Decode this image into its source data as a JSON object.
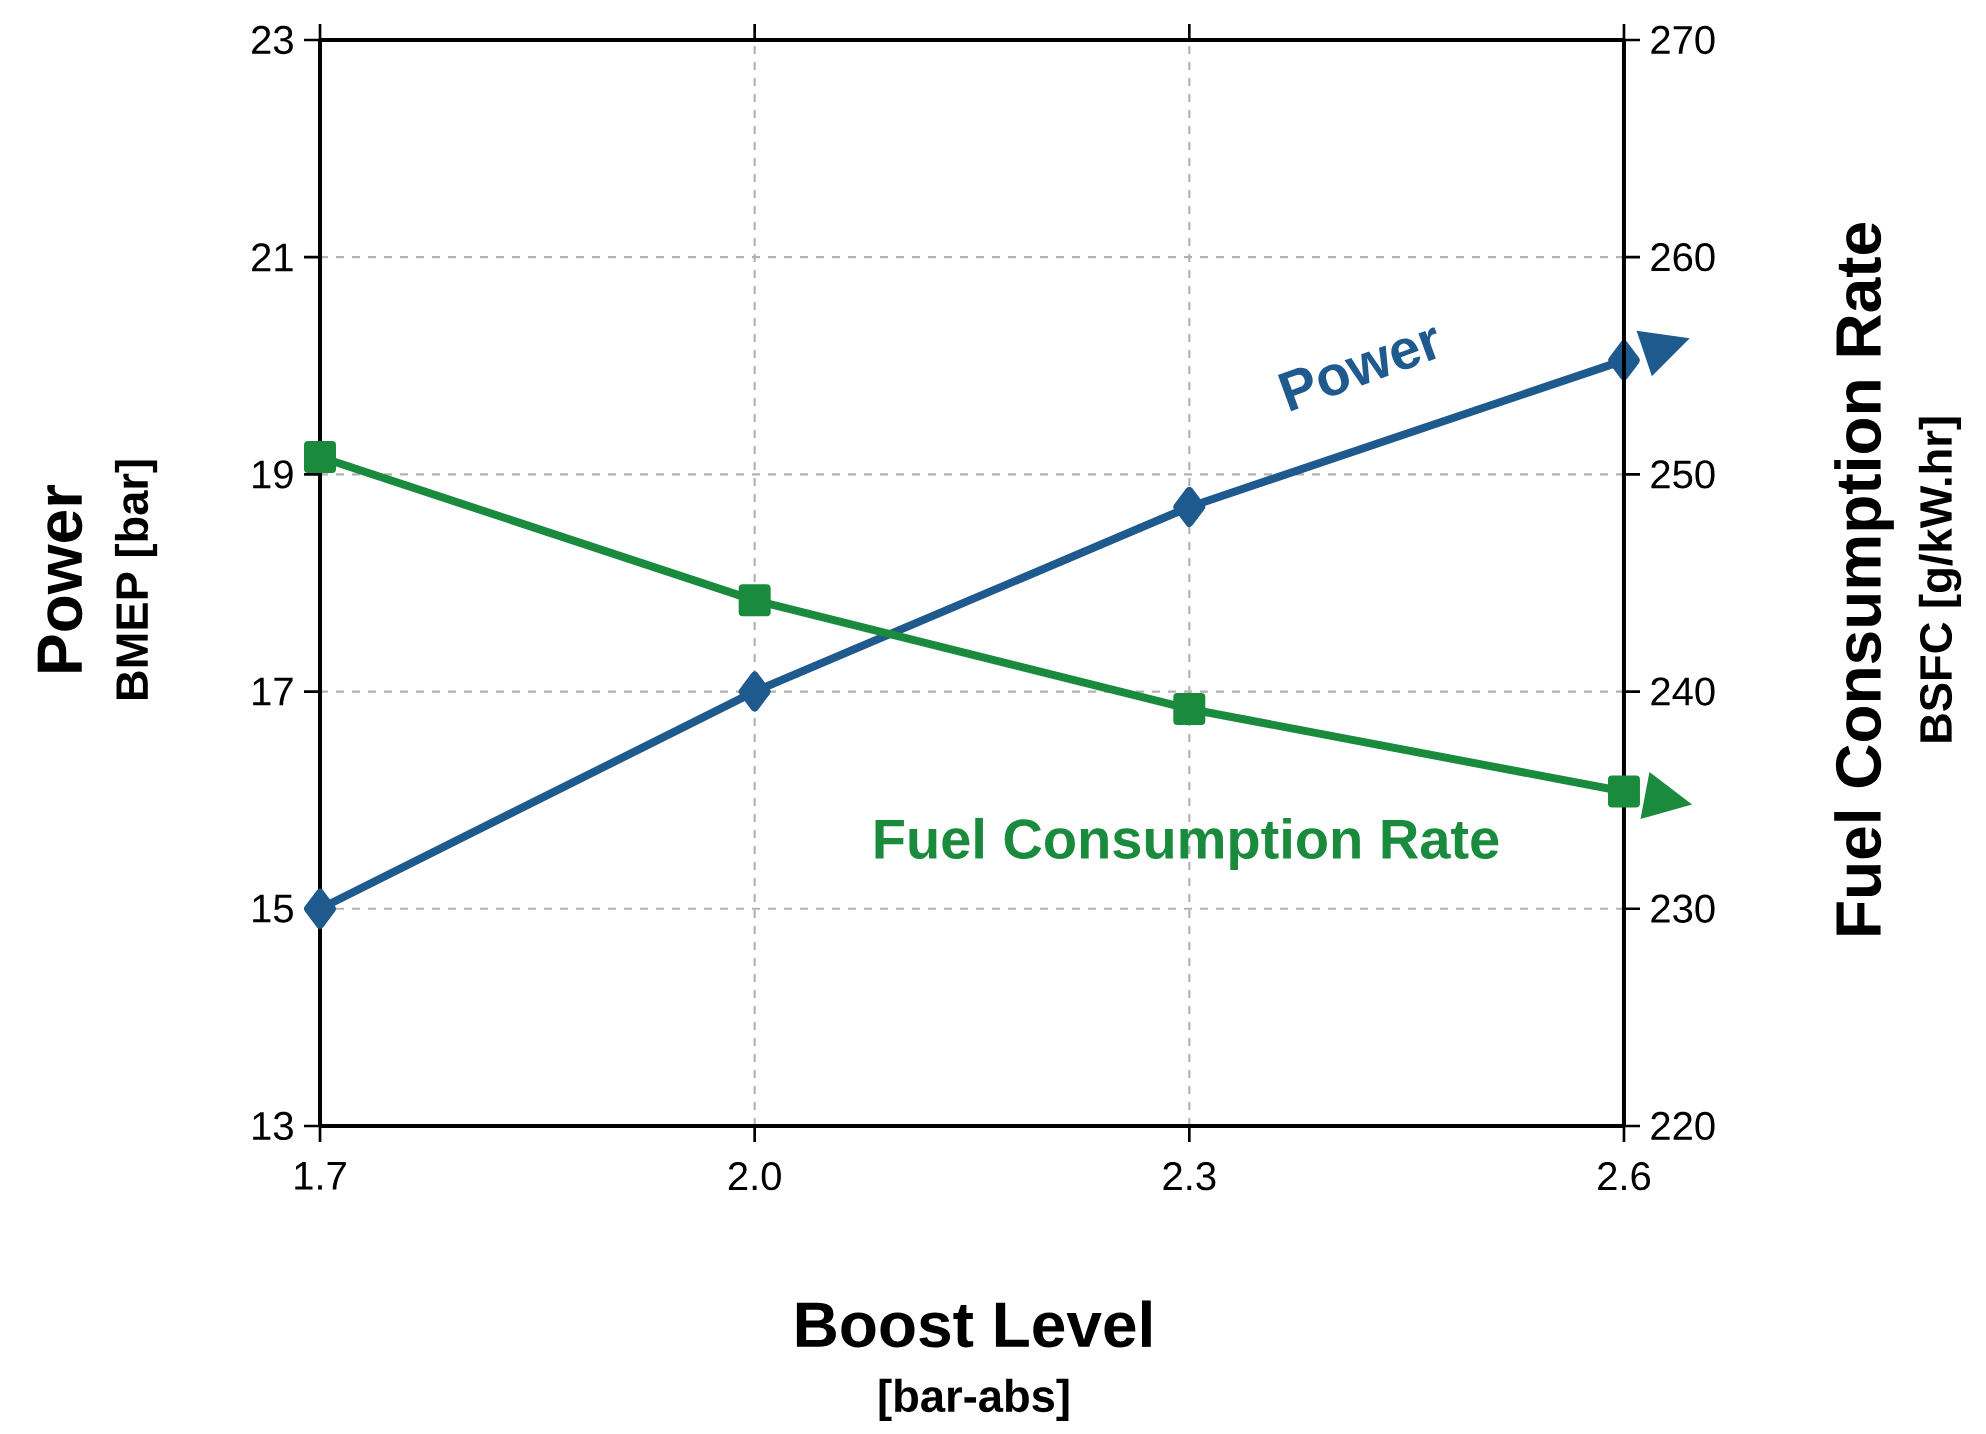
{
  "chart_data": {
    "type": "line",
    "xlabel": "Boost Level",
    "ylabel": "Power",
    "y2label": "Fuel Consumption Rate",
    "annotations": [
      "BMEP [bar]",
      "BSFC [g/kW.hr]",
      "[bar-abs]"
    ],
    "x": [
      1.7,
      2.0,
      2.3,
      2.6
    ],
    "series": [
      {
        "name": "Power",
        "color": "#1f5a8f",
        "marker": "diamond",
        "values": [
          15.0,
          17.0,
          18.7,
          20.05
        ]
      },
      {
        "name": "Fuel Consumption Rate",
        "color": "#1a8a3c",
        "marker": "square",
        "axis": "y2",
        "values": [
          250.8,
          244.2,
          239.2,
          235.4
        ]
      }
    ],
    "xlim": [
      1.7,
      2.6
    ],
    "xticks": [
      1.7,
      {
        "value": 2.0,
        "label": "2.0"
      },
      2.3,
      {
        "value": 2.6,
        "label": "2.6"
      }
    ],
    "ylim": [
      13,
      23
    ],
    "yticks": [
      13,
      15,
      17,
      19,
      21,
      23
    ],
    "y2lim": [
      220,
      270
    ],
    "y2ticks": [
      220,
      230,
      240,
      250,
      260,
      270
    ],
    "grid": true
  }
}
